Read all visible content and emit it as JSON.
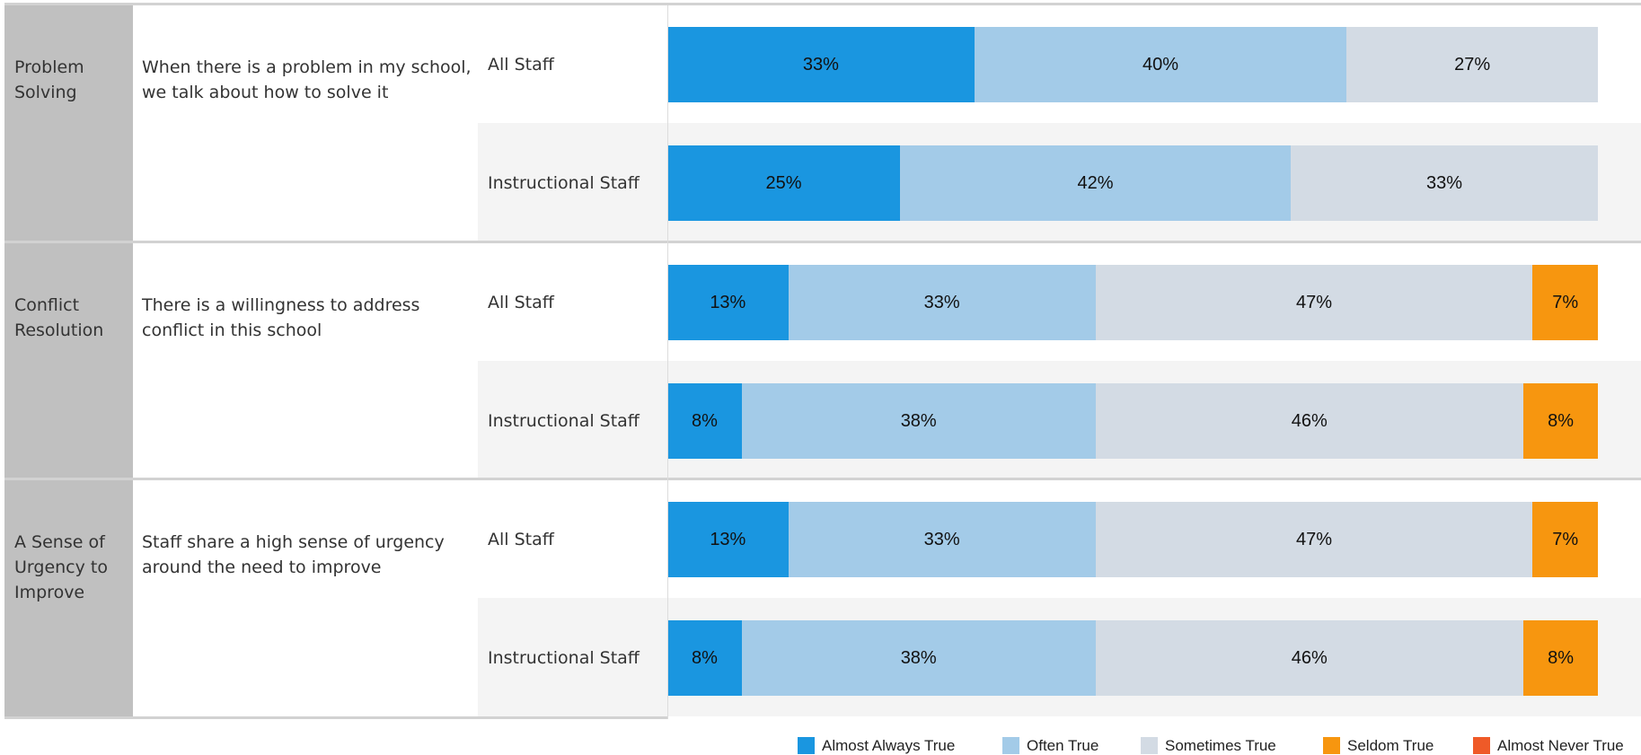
{
  "chart_data": {
    "type": "stacked_bar",
    "xlim": [
      0,
      100
    ],
    "series": [
      {
        "name": "Almost Always True",
        "color": "#1a96e0"
      },
      {
        "name": "Often True",
        "color": "#a3cbe8"
      },
      {
        "name": "Sometimes True",
        "color": "#d3dbe4"
      },
      {
        "name": "Seldom True",
        "color": "#f7960f"
      },
      {
        "name": "Almost Never True",
        "color": "#ef5a28"
      }
    ],
    "groups": [
      {
        "name": "Problem Solving",
        "question": "When there is a problem in my school, we talk about how to solve it",
        "rows": [
          {
            "name": "All Staff",
            "values": [
              33,
              40,
              27,
              null,
              null
            ],
            "value_labels": [
              "33%",
              "40%",
              "27%",
              null,
              null
            ]
          },
          {
            "name": "Instructional Staff",
            "values": [
              25,
              42,
              33,
              null,
              null
            ],
            "value_labels": [
              "25%",
              "42%",
              "33%",
              null,
              null
            ]
          }
        ]
      },
      {
        "name": "Conflict Resolution",
        "question": "There is a willingness to address conflict in this school",
        "rows": [
          {
            "name": "All Staff",
            "values": [
              13,
              33,
              47,
              7,
              null
            ],
            "value_labels": [
              "13%",
              "33%",
              "47%",
              "7%",
              null
            ]
          },
          {
            "name": "Instructional Staff",
            "values": [
              8,
              38,
              46,
              8,
              null
            ],
            "value_labels": [
              "8%",
              "38%",
              "46%",
              "8%",
              null
            ]
          }
        ]
      },
      {
        "name": "A Sense of Urgency to Improve",
        "question": "Staff share a high sense of urgency around the need to improve",
        "rows": [
          {
            "name": "All Staff",
            "values": [
              13,
              33,
              47,
              7,
              null
            ],
            "value_labels": [
              "13%",
              "33%",
              "47%",
              "7%",
              null
            ]
          },
          {
            "name": "Instructional Staff",
            "values": [
              8,
              38,
              46,
              8,
              null
            ],
            "value_labels": [
              "8%",
              "38%",
              "46%",
              "8%",
              null
            ]
          }
        ]
      }
    ]
  }
}
